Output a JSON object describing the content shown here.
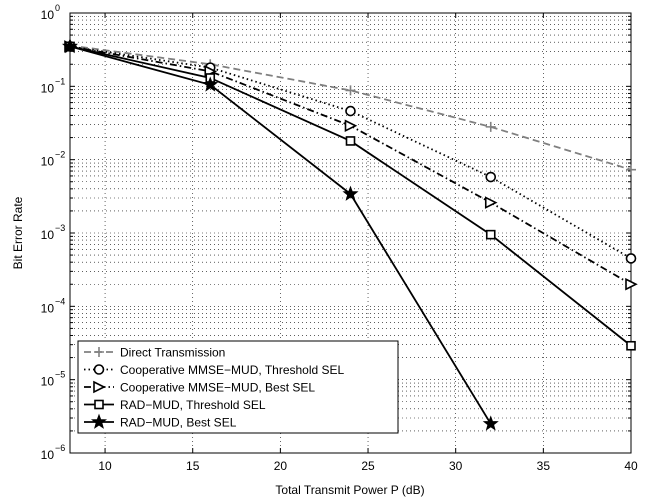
{
  "chart_data": {
    "type": "line",
    "title": "",
    "xlabel": "Total Transmit Power P (dB)",
    "ylabel": "Bit Error Rate",
    "xlim": [
      8,
      40
    ],
    "ylim": [
      1e-06,
      1
    ],
    "yscale": "log",
    "grid": true,
    "legend_position": "bottom-left",
    "x_ticks": [
      10,
      15,
      20,
      25,
      30,
      35,
      40
    ],
    "y_ticks": [
      {
        "base": "10",
        "exp": "0",
        "value": 1
      },
      {
        "base": "10",
        "exp": "-1",
        "value": 0.1
      },
      {
        "base": "10",
        "exp": "-2",
        "value": 0.01
      },
      {
        "base": "10",
        "exp": "-3",
        "value": 0.001
      },
      {
        "base": "10",
        "exp": "-4",
        "value": 0.0001
      },
      {
        "base": "10",
        "exp": "-5",
        "value": 1e-05
      },
      {
        "base": "10",
        "exp": "-6",
        "value": 1e-06
      }
    ],
    "series": [
      {
        "name": "Direct Transmission",
        "color": "#808080",
        "linestyle": "dashed",
        "marker": "plus",
        "x": [
          8,
          16,
          24,
          32,
          40
        ],
        "y": [
          0.36,
          0.2,
          0.088,
          0.028,
          0.0073
        ]
      },
      {
        "name": "Cooperative MMSE−MUD, Threshold SEL",
        "color": "#000000",
        "linestyle": "dotted",
        "marker": "circle",
        "x": [
          8,
          16,
          24,
          32,
          40
        ],
        "y": [
          0.35,
          0.18,
          0.046,
          0.0058,
          0.00045
        ]
      },
      {
        "name": "Cooperative MMSE−MUD, Best SEL",
        "color": "#000000",
        "linestyle": "dashdot",
        "marker": "triangle-right",
        "x": [
          8,
          16,
          24,
          32,
          40
        ],
        "y": [
          0.35,
          0.16,
          0.029,
          0.0026,
          0.0002
        ]
      },
      {
        "name": "RAD−MUD, Threshold SEL",
        "color": "#000000",
        "linestyle": "solid",
        "marker": "square",
        "x": [
          8,
          16,
          24,
          32,
          40
        ],
        "y": [
          0.35,
          0.13,
          0.018,
          0.00095,
          2.9e-05
        ]
      },
      {
        "name": "RAD−MUD, Best SEL",
        "color": "#000000",
        "linestyle": "solid",
        "marker": "star",
        "x": [
          8,
          16,
          24,
          32
        ],
        "y": [
          0.35,
          0.105,
          0.0034,
          2.5e-06
        ]
      }
    ]
  }
}
